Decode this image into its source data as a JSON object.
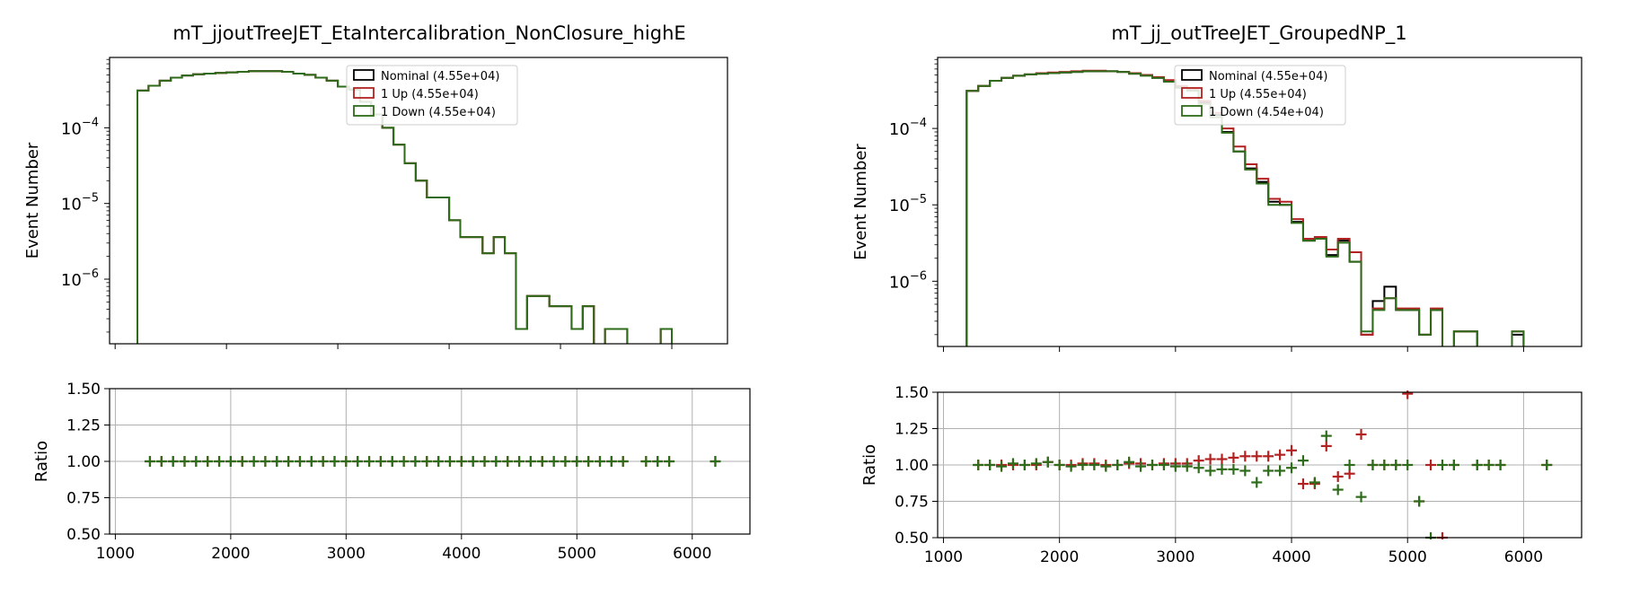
{
  "figure": {
    "panels": [
      {
        "title": "mT_jjoutTreeJET_EtaIntercalibration_NonClosure_highE",
        "main_ylabel": "Event Number",
        "ratio_ylabel": "Ratio",
        "main_yticks": [
          {
            "exp": "-4"
          },
          {
            "exp": "-5"
          },
          {
            "exp": "-6"
          }
        ],
        "ratio_yticks": [
          "1.50",
          "1.25",
          "1.00",
          "0.75",
          "0.50"
        ],
        "xticks": [
          "1000",
          "2000",
          "3000",
          "4000",
          "5000",
          "6000"
        ],
        "legend": [
          {
            "label": "Nominal (4.55e+04)",
            "color": "#000000"
          },
          {
            "label": "1 Up (4.55e+04)",
            "color": "#b22222"
          },
          {
            "label": "1 Down (4.55e+04)",
            "color": "#2e6b1a"
          }
        ]
      },
      {
        "title": "mT_jj_outTreeJET_GroupedNP_1",
        "main_ylabel": "Event Number",
        "ratio_ylabel": "Ratio",
        "main_yticks": [
          {
            "exp": "-4"
          },
          {
            "exp": "-5"
          },
          {
            "exp": "-6"
          }
        ],
        "ratio_yticks": [
          "1.50",
          "1.25",
          "1.00",
          "0.75",
          "0.50"
        ],
        "xticks": [
          "1000",
          "2000",
          "3000",
          "4000",
          "5000",
          "6000"
        ],
        "legend": [
          {
            "label": "Nominal (4.55e+04)",
            "color": "#000000"
          },
          {
            "label": "1 Up (4.55e+04)",
            "color": "#b22222"
          },
          {
            "label": "1 Down (4.54e+04)",
            "color": "#2e6b1a"
          }
        ]
      }
    ]
  },
  "chart_data": [
    {
      "type": "line",
      "title": "mT_jjoutTreeJET_EtaIntercalibration_NonClosure_highE",
      "xlabel": "",
      "ylabel": "Event Number",
      "yscale": "log",
      "xlim": [
        950,
        6500
      ],
      "ylim": [
        1.4e-07,
        0.00085
      ],
      "bin_edges": [
        1200,
        1300,
        1400,
        1500,
        1600,
        1700,
        1800,
        1900,
        2000,
        2100,
        2200,
        2300,
        2400,
        2500,
        2600,
        2700,
        2800,
        2900,
        3000,
        3100,
        3200,
        3300,
        3400,
        3500,
        3600,
        3700,
        3800,
        3900,
        4000,
        4100,
        4200,
        4300,
        4400,
        4500,
        4600,
        4700,
        4800,
        4900,
        5000,
        5100,
        5200,
        5300,
        5400,
        5500,
        5600,
        5700,
        5800,
        5900,
        6000,
        6100,
        6200,
        6300
      ],
      "series": [
        {
          "name": "Nominal (4.55e+04)",
          "values": [
            0.00031,
            0.00036,
            0.00042,
            0.00046,
            0.00049,
            0.00051,
            0.00052,
            0.00053,
            0.00054,
            0.00055,
            0.00056,
            0.00056,
            0.00056,
            0.00055,
            0.00052,
            0.0005,
            0.00046,
            0.00042,
            0.00035,
            0.00032,
            0.00022,
            0.00015,
            0.0001,
            6e-05,
            3.4e-05,
            2e-05,
            1.2e-05,
            1.2e-05,
            6e-06,
            3.6e-06,
            3.6e-06,
            2.2e-06,
            3.6e-06,
            2.2e-06,
            2.2e-07,
            6e-07,
            6e-07,
            4.4e-07,
            4.4e-07,
            2.2e-07,
            4.4e-07,
            0,
            2.2e-07,
            2.2e-07,
            0,
            0,
            0,
            2.2e-07,
            0
          ]
        },
        {
          "name": "1 Up (4.55e+04)",
          "values": [
            0.00031,
            0.00036,
            0.00042,
            0.00046,
            0.00049,
            0.00051,
            0.00052,
            0.00053,
            0.00054,
            0.00055,
            0.00056,
            0.00056,
            0.00056,
            0.00055,
            0.00052,
            0.0005,
            0.00046,
            0.00042,
            0.00035,
            0.00032,
            0.00022,
            0.00015,
            0.0001,
            6e-05,
            3.4e-05,
            2e-05,
            1.2e-05,
            1.2e-05,
            6e-06,
            3.6e-06,
            3.6e-06,
            2.2e-06,
            3.6e-06,
            2.2e-06,
            2.2e-07,
            6e-07,
            6e-07,
            4.4e-07,
            4.4e-07,
            2.2e-07,
            4.4e-07,
            0,
            2.2e-07,
            2.2e-07,
            0,
            0,
            0,
            2.2e-07,
            0
          ]
        },
        {
          "name": "1 Down (4.55e+04)",
          "values": [
            0.00031,
            0.00036,
            0.00042,
            0.00046,
            0.00049,
            0.00051,
            0.00052,
            0.00053,
            0.00054,
            0.00055,
            0.00056,
            0.00056,
            0.00056,
            0.00055,
            0.00052,
            0.0005,
            0.00046,
            0.00042,
            0.00035,
            0.00032,
            0.00022,
            0.00015,
            0.0001,
            6e-05,
            3.4e-05,
            2e-05,
            1.2e-05,
            1.2e-05,
            6e-06,
            3.6e-06,
            3.6e-06,
            2.2e-06,
            3.6e-06,
            2.2e-06,
            2.2e-07,
            6e-07,
            6e-07,
            4.4e-07,
            4.4e-07,
            2.2e-07,
            4.4e-07,
            0,
            2.2e-07,
            2.2e-07,
            0,
            0,
            0,
            2.2e-07,
            0
          ]
        }
      ],
      "ratio": {
        "ylabel": "Ratio",
        "ylim": [
          0.5,
          1.5
        ],
        "x": [
          1300,
          1400,
          1500,
          1600,
          1700,
          1800,
          1900,
          2000,
          2100,
          2200,
          2300,
          2400,
          2500,
          2600,
          2700,
          2800,
          2900,
          3000,
          3100,
          3200,
          3300,
          3400,
          3500,
          3600,
          3700,
          3800,
          3900,
          4000,
          4100,
          4200,
          4300,
          4400,
          4500,
          4600,
          4700,
          4800,
          4900,
          5000,
          5100,
          5200,
          5300,
          5400,
          5600,
          5700,
          5800,
          6200
        ],
        "series": [
          {
            "name": "1 Up (4.55e+04)",
            "values": [
              1,
              1,
              1,
              1,
              1,
              1,
              1,
              1,
              1,
              1,
              1,
              1,
              1,
              1,
              1,
              1,
              1,
              1,
              1,
              1,
              1,
              1,
              1,
              1,
              1,
              1,
              1,
              1,
              1,
              1,
              1,
              1,
              1,
              1,
              1,
              1,
              1,
              1,
              1,
              1,
              1,
              1,
              1,
              1,
              1,
              1
            ]
          },
          {
            "name": "1 Down (4.55e+04)",
            "values": [
              1,
              1,
              1,
              1,
              1,
              1,
              1,
              1,
              1,
              1,
              1,
              1,
              1,
              1,
              1,
              1,
              1,
              1,
              1,
              1,
              1,
              1,
              1,
              1,
              1,
              1,
              1,
              1,
              1,
              1,
              1,
              1,
              1,
              1,
              1,
              1,
              1,
              1,
              1,
              1,
              1,
              1,
              1,
              1,
              1,
              1
            ]
          }
        ]
      }
    },
    {
      "type": "line",
      "title": "mT_jj_outTreeJET_GroupedNP_1",
      "xlabel": "",
      "ylabel": "Event Number",
      "yscale": "log",
      "xlim": [
        950,
        6500
      ],
      "ylim": [
        1.4e-07,
        0.00085
      ],
      "bin_edges": [
        1200,
        1300,
        1400,
        1500,
        1600,
        1700,
        1800,
        1900,
        2000,
        2100,
        2200,
        2300,
        2400,
        2500,
        2600,
        2700,
        2800,
        2900,
        3000,
        3100,
        3200,
        3300,
        3400,
        3500,
        3600,
        3700,
        3800,
        3900,
        4000,
        4100,
        4200,
        4300,
        4400,
        4500,
        4600,
        4700,
        4800,
        4900,
        5000,
        5100,
        5200,
        5300,
        5400,
        5500,
        5600,
        5700,
        5800,
        5900,
        6000,
        6100,
        6200,
        6300
      ],
      "series": [
        {
          "name": "Nominal (4.55e+04)",
          "values": [
            0.00031,
            0.00036,
            0.00042,
            0.00046,
            0.00049,
            0.00051,
            0.00052,
            0.00053,
            0.00054,
            0.00055,
            0.00056,
            0.00056,
            0.00056,
            0.00055,
            0.00052,
            0.0005,
            0.00046,
            0.00042,
            0.00035,
            0.00032,
            0.00022,
            0.00015,
            9e-05,
            5e-05,
            3e-05,
            2e-05,
            1.1e-05,
            1e-05,
            6e-06,
            3.4e-06,
            3.6e-06,
            2.2e-06,
            3.4e-06,
            1.8e-06,
            2e-07,
            5.5e-07,
            8.5e-07,
            4.2e-07,
            4.2e-07,
            2e-07,
            4.2e-07,
            0,
            2.2e-07,
            2.2e-07,
            0,
            0,
            0,
            2e-07,
            0
          ]
        },
        {
          "name": "1 Up (4.55e+04)",
          "values": [
            0.00031,
            0.00036,
            0.00042,
            0.00046,
            0.00049,
            0.00051,
            0.00053,
            0.00054,
            0.00055,
            0.00056,
            0.00057,
            0.00057,
            0.00056,
            0.00055,
            0.00053,
            0.0005,
            0.00047,
            0.00043,
            0.00036,
            0.00033,
            0.00023,
            0.00016,
            0.0001,
            5.8e-05,
            3.4e-05,
            2.2e-05,
            1.2e-05,
            1.1e-05,
            6.5e-06,
            3.6e-06,
            3.8e-06,
            2.6e-06,
            3.6e-06,
            2.4e-06,
            2e-07,
            4.4e-07,
            6e-07,
            4.4e-07,
            4.4e-07,
            2e-07,
            4.4e-07,
            0,
            2.2e-07,
            2.2e-07,
            0,
            0,
            0,
            2.2e-07,
            0
          ]
        },
        {
          "name": "1 Down (4.54e+04)",
          "values": [
            0.00031,
            0.00036,
            0.00042,
            0.00046,
            0.00049,
            0.00051,
            0.00052,
            0.00053,
            0.00054,
            0.00055,
            0.00056,
            0.00056,
            0.00056,
            0.00055,
            0.00052,
            0.00049,
            0.00046,
            0.00041,
            0.00034,
            0.00031,
            0.00021,
            0.00014,
            8.8e-05,
            5e-05,
            2.9e-05,
            1.9e-05,
            1e-05,
            1e-05,
            5.8e-06,
            3.4e-06,
            3.6e-06,
            2.1e-06,
            3.2e-06,
            1.8e-06,
            2.2e-07,
            4.2e-07,
            6e-07,
            4.2e-07,
            4.2e-07,
            2e-07,
            4.2e-07,
            0,
            2.2e-07,
            2.2e-07,
            0,
            0,
            0,
            2.2e-07,
            0
          ]
        }
      ],
      "ratio": {
        "ylabel": "Ratio",
        "ylim": [
          0.5,
          1.5
        ],
        "x": [
          1300,
          1400,
          1500,
          1600,
          1700,
          1800,
          1900,
          2000,
          2100,
          2200,
          2300,
          2400,
          2500,
          2600,
          2700,
          2800,
          2900,
          3000,
          3100,
          3200,
          3300,
          3400,
          3500,
          3600,
          3700,
          3800,
          3900,
          4000,
          4100,
          4200,
          4300,
          4400,
          4500,
          4600,
          4700,
          4800,
          4900,
          5000,
          5100,
          5200,
          5300,
          5400,
          5600,
          5700,
          5800,
          6200
        ],
        "series": [
          {
            "name": "1 Up (4.55e+04)",
            "values": [
              1.0,
              1.0,
              1.0,
              1.0,
              1.0,
              1.0,
              1.02,
              1.0,
              1.0,
              1.01,
              1.01,
              1.0,
              1.0,
              1.01,
              1.01,
              1.0,
              1.01,
              1.01,
              1.01,
              1.03,
              1.04,
              1.04,
              1.05,
              1.06,
              1.06,
              1.06,
              1.07,
              1.1,
              0.87,
              0.87,
              1.13,
              0.92,
              0.94,
              1.21,
              1.0,
              1.0,
              1.0,
              1.49,
              0.75,
              1.0,
              0.5,
              1.0,
              1.0,
              1.0,
              1.0,
              1.0
            ]
          },
          {
            "name": "1 Down (4.54e+04)",
            "values": [
              1.0,
              1.0,
              0.99,
              1.01,
              1.0,
              1.01,
              1.02,
              1.0,
              0.99,
              1.0,
              1.0,
              0.99,
              1.0,
              1.02,
              0.99,
              1.0,
              1.0,
              0.99,
              0.99,
              0.98,
              0.96,
              0.97,
              0.97,
              0.96,
              0.88,
              0.96,
              0.96,
              0.98,
              1.03,
              0.88,
              1.2,
              0.83,
              1.0,
              0.78,
              1.0,
              1.0,
              1.0,
              1.0,
              0.75,
              0.5,
              1.0,
              1.0,
              1.0,
              1.0,
              1.0,
              1.0
            ]
          }
        ]
      }
    }
  ]
}
